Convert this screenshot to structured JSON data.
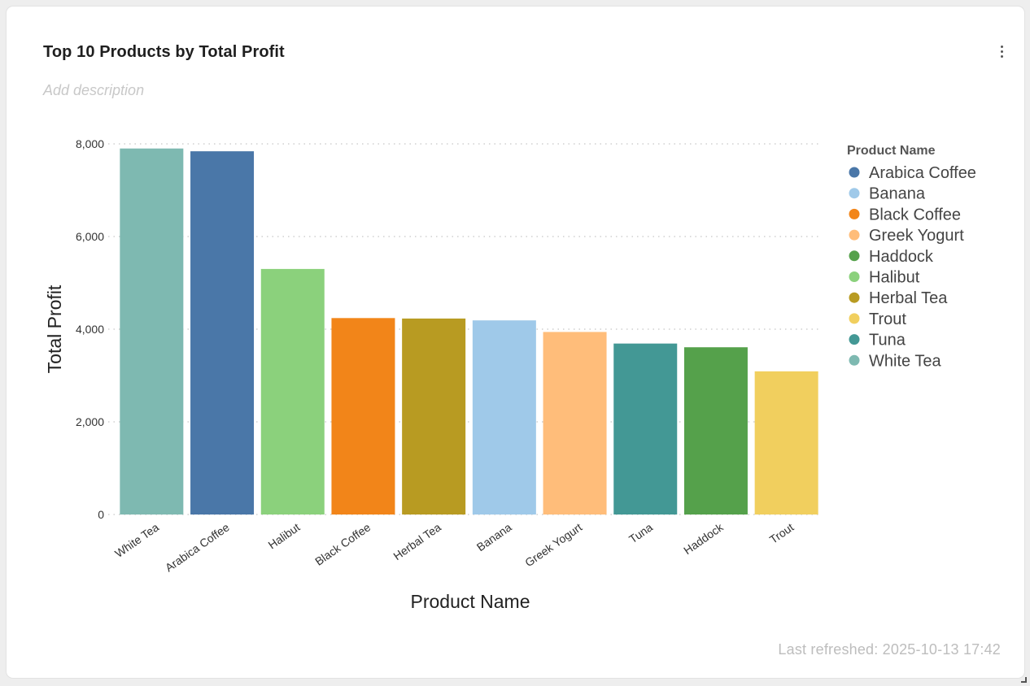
{
  "card": {
    "title": "Top 10 Products by Total Profit",
    "description_placeholder": "Add description",
    "last_refreshed": "Last refreshed: 2025-10-13 17:42",
    "menu_icon": "vertical-ellipsis-icon",
    "resize_icon": "resize-handle-icon"
  },
  "chart_data": {
    "type": "bar",
    "title": "Top 10 Products by Total Profit",
    "xlabel": "Product Name",
    "ylabel": "Total Profit",
    "ylim": [
      0,
      8000
    ],
    "yticks": [
      0,
      2000,
      4000,
      6000,
      8000
    ],
    "ytick_labels": [
      "0",
      "2,000",
      "4,000",
      "6,000",
      "8,000"
    ],
    "grid": true,
    "categories": [
      "White Tea",
      "Arabica Coffee",
      "Halibut",
      "Black Coffee",
      "Herbal Tea",
      "Banana",
      "Greek Yogurt",
      "Tuna",
      "Haddock",
      "Trout"
    ],
    "values": [
      7900,
      7840,
      5300,
      4240,
      4230,
      4190,
      3940,
      3690,
      3610,
      3090
    ],
    "bar_colors": [
      "#7eb9b1",
      "#4a77a8",
      "#8bd17c",
      "#f28519",
      "#b89b22",
      "#9fc9e9",
      "#ffbd7a",
      "#439895",
      "#55a14b",
      "#f1cf5e"
    ],
    "legend": {
      "title": "Product Name",
      "position": "right",
      "items": [
        {
          "label": "Arabica Coffee",
          "color": "#4a77a8"
        },
        {
          "label": "Banana",
          "color": "#9fc9e9"
        },
        {
          "label": "Black Coffee",
          "color": "#f28519"
        },
        {
          "label": "Greek Yogurt",
          "color": "#ffbd7a"
        },
        {
          "label": "Haddock",
          "color": "#55a14b"
        },
        {
          "label": "Halibut",
          "color": "#8bd17c"
        },
        {
          "label": "Herbal Tea",
          "color": "#b89b22"
        },
        {
          "label": "Trout",
          "color": "#f1cf5e"
        },
        {
          "label": "Tuna",
          "color": "#439895"
        },
        {
          "label": "White Tea",
          "color": "#7eb9b1"
        }
      ]
    }
  }
}
